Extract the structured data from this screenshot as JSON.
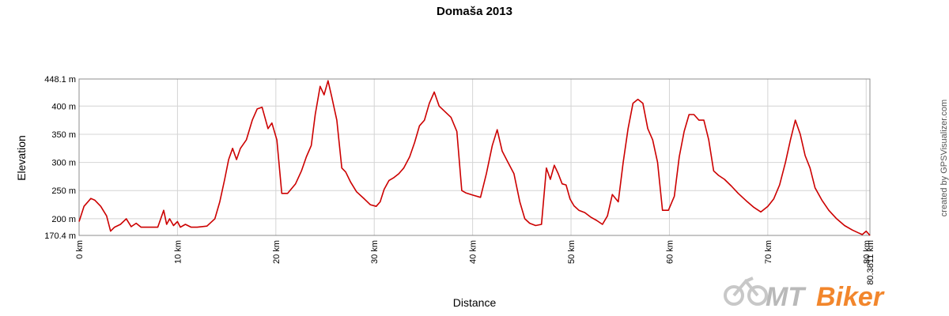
{
  "chart_data": {
    "type": "line",
    "title": "Domaša 2013",
    "xlabel": "Distance",
    "ylabel": "Elevation",
    "xlim": [
      0,
      80.3811
    ],
    "ylim": [
      170.4,
      448.1
    ],
    "grid": true,
    "x_ticks": [
      {
        "value": 0,
        "label": "0 km"
      },
      {
        "value": 10,
        "label": "10 km"
      },
      {
        "value": 20,
        "label": "20 km"
      },
      {
        "value": 30,
        "label": "30 km"
      },
      {
        "value": 40,
        "label": "40 km"
      },
      {
        "value": 50,
        "label": "50 km"
      },
      {
        "value": 60,
        "label": "60 km"
      },
      {
        "value": 70,
        "label": "70 km"
      },
      {
        "value": 80,
        "label": "80 km"
      },
      {
        "value": 80.3811,
        "label": "80.3811 km"
      }
    ],
    "y_ticks": [
      {
        "value": 170.4,
        "label": "170.4 m"
      },
      {
        "value": 200,
        "label": "200 m"
      },
      {
        "value": 250,
        "label": "250 m"
      },
      {
        "value": 300,
        "label": "300 m"
      },
      {
        "value": 350,
        "label": "350 m"
      },
      {
        "value": 400,
        "label": "400 m"
      },
      {
        "value": 448.1,
        "label": "448.1 m"
      }
    ],
    "series": [
      {
        "color": "#cc0000",
        "x": [
          0,
          0.5,
          1.2,
          1.6,
          2.2,
          2.8,
          3.2,
          3.6,
          4.2,
          4.8,
          5.3,
          5.8,
          6.3,
          7.0,
          8.0,
          8.6,
          8.9,
          9.2,
          9.6,
          10.0,
          10.3,
          10.8,
          11.4,
          12.0,
          13.0,
          13.8,
          14.3,
          14.8,
          15.2,
          15.6,
          16.0,
          16.4,
          17.0,
          17.6,
          18.1,
          18.6,
          19.2,
          19.6,
          20.1,
          20.6,
          21.2,
          22.0,
          22.6,
          23.1,
          23.6,
          24.0,
          24.5,
          24.9,
          25.3,
          25.7,
          26.2,
          26.7,
          27.1,
          27.6,
          28.2,
          29.0,
          29.6,
          30.2,
          30.6,
          31.0,
          31.5,
          32.0,
          32.5,
          33.0,
          33.6,
          34.1,
          34.6,
          35.1,
          35.6,
          36.1,
          36.6,
          37.2,
          37.8,
          38.4,
          38.9,
          39.3,
          40.0,
          40.8,
          41.4,
          42.0,
          42.5,
          43.0,
          43.6,
          44.2,
          44.8,
          45.3,
          45.8,
          46.4,
          47.0,
          47.5,
          47.9,
          48.3,
          48.7,
          49.1,
          49.5,
          49.9,
          50.3,
          50.8,
          51.4,
          52.0,
          52.6,
          53.2,
          53.7,
          54.2,
          54.8,
          55.3,
          55.8,
          56.3,
          56.8,
          57.3,
          57.8,
          58.3,
          58.8,
          59.3,
          59.9,
          60.5,
          61.0,
          61.5,
          62.0,
          62.5,
          63.0,
          63.5,
          64.0,
          64.5,
          65.0,
          65.6,
          66.3,
          67.0,
          67.8,
          68.6,
          69.3,
          70.0,
          70.6,
          71.2,
          71.8,
          72.3,
          72.8,
          73.3,
          73.8,
          74.3,
          74.8,
          75.5,
          76.2,
          77.0,
          77.8,
          78.6,
          79.2,
          79.6,
          80.0,
          80.3811
        ],
        "y": [
          195,
          222,
          236,
          233,
          222,
          205,
          178,
          185,
          190,
          200,
          186,
          192,
          185,
          185,
          185,
          215,
          190,
          200,
          188,
          195,
          185,
          190,
          185,
          185,
          187,
          200,
          230,
          270,
          305,
          325,
          305,
          325,
          340,
          375,
          395,
          398,
          360,
          370,
          340,
          245,
          245,
          262,
          285,
          310,
          330,
          385,
          435,
          420,
          445,
          415,
          375,
          290,
          283,
          265,
          248,
          235,
          225,
          222,
          230,
          252,
          268,
          273,
          280,
          290,
          310,
          335,
          365,
          375,
          405,
          425,
          400,
          390,
          380,
          355,
          250,
          246,
          242,
          238,
          280,
          330,
          358,
          320,
          300,
          280,
          230,
          200,
          192,
          188,
          190,
          290,
          270,
          295,
          280,
          262,
          260,
          235,
          223,
          215,
          211,
          203,
          197,
          190,
          205,
          243,
          230,
          300,
          360,
          405,
          412,
          405,
          360,
          340,
          300,
          215,
          215,
          240,
          310,
          355,
          385,
          385,
          375,
          375,
          340,
          285,
          277,
          270,
          258,
          245,
          232,
          220,
          212,
          222,
          235,
          260,
          300,
          340,
          375,
          350,
          312,
          290,
          255,
          233,
          215,
          200,
          188,
          180,
          175,
          172,
          178,
          170.4
        ]
      }
    ],
    "credit": "created by GPSVisualizer.com",
    "logo": {
      "part1": "MT",
      "part2": "Biker"
    }
  }
}
